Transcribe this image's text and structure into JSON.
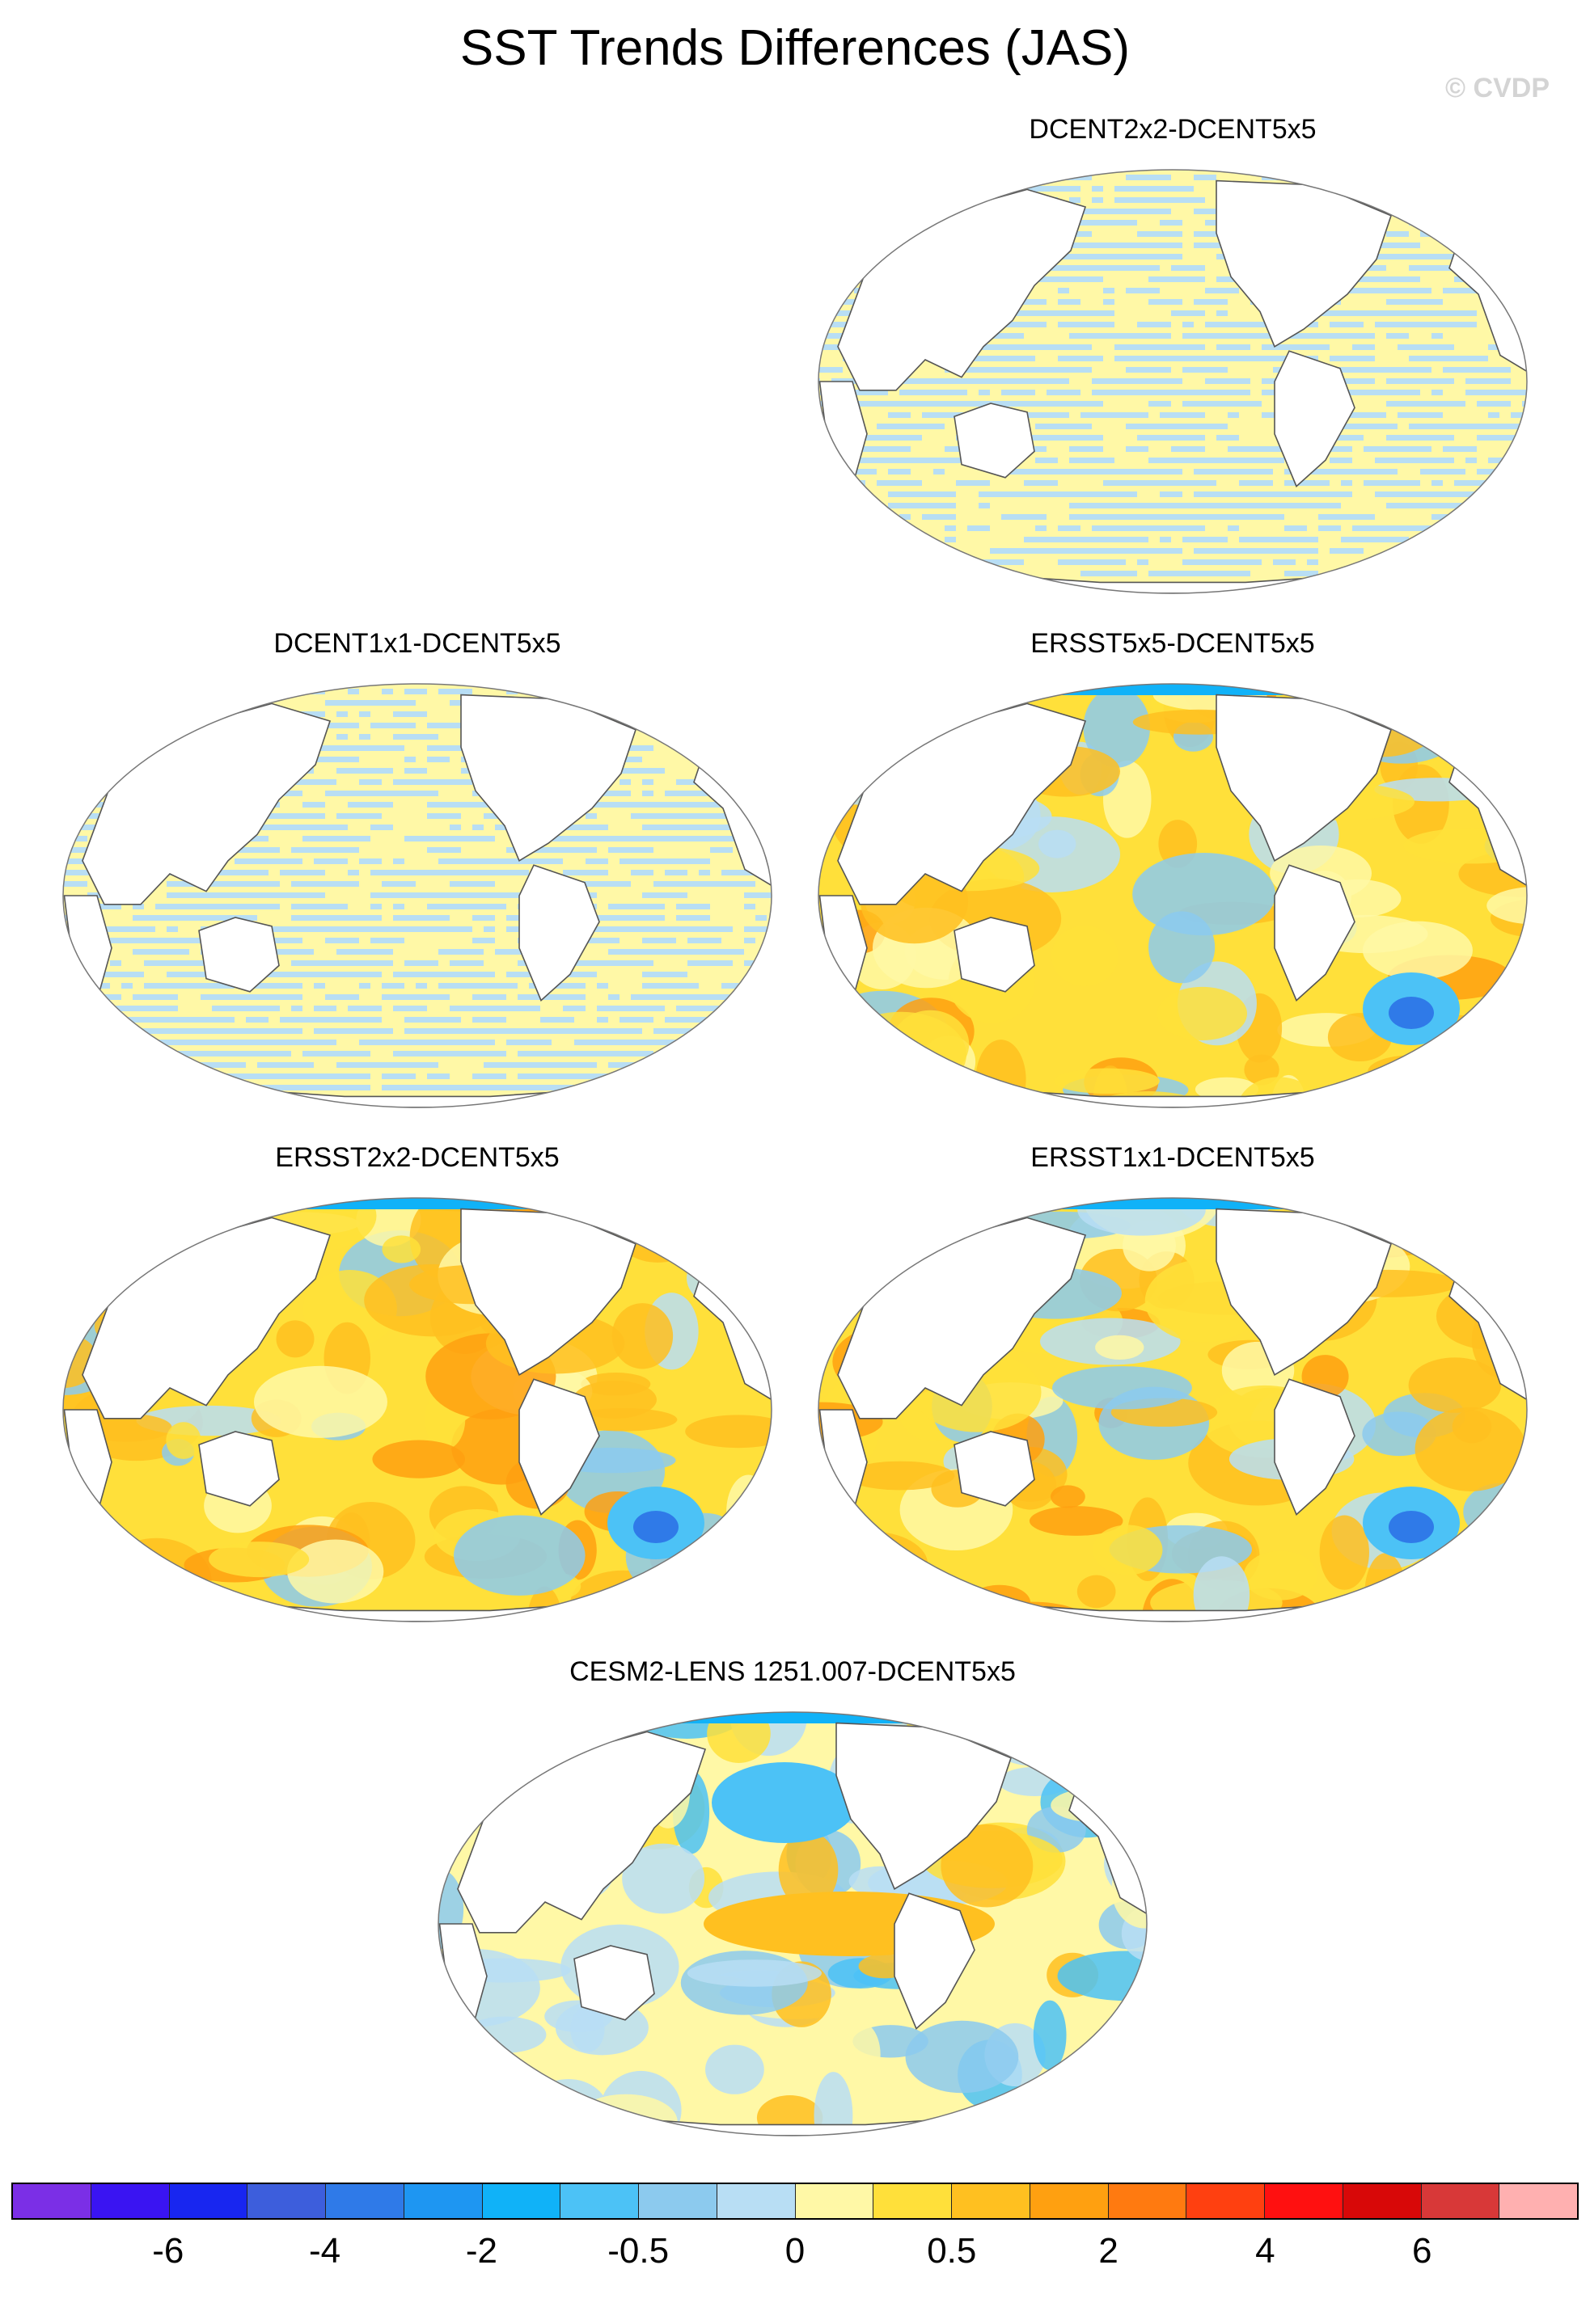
{
  "title": "SST Trends Differences (JAS)",
  "copyright": "© CVDP",
  "panels": [
    {
      "id": "p1",
      "title": "DCENT2x2-DCENT5x5",
      "pattern": "stripes"
    },
    {
      "id": "p2",
      "title": "DCENT1x1-DCENT5x5",
      "pattern": "stripes"
    },
    {
      "id": "p3",
      "title": "ERSST5x5-DCENT5x5",
      "pattern": "warm"
    },
    {
      "id": "p4",
      "title": "ERSST2x2-DCENT5x5",
      "pattern": "warm"
    },
    {
      "id": "p5",
      "title": "ERSST1x1-DCENT5x5",
      "pattern": "warm"
    },
    {
      "id": "p6",
      "title": "CESM2-LENS 1251.007-DCENT5x5",
      "pattern": "mixed"
    }
  ],
  "colorbar": {
    "colors": [
      "#7b2fe6",
      "#3a14f2",
      "#1826f0",
      "#3d5edc",
      "#2f7ae8",
      "#1e96f2",
      "#10b2f8",
      "#4cc2f6",
      "#8ccaee",
      "#b8def4",
      "#fff8a6",
      "#ffe03a",
      "#ffc020",
      "#ffa010",
      "#ff7a10",
      "#ff4010",
      "#ff1010",
      "#d80808",
      "#d83838",
      "#ffb0b0"
    ],
    "tick_labels": [
      "-6",
      "-4",
      "-2",
      "-0.5",
      "0",
      "0.5",
      "2",
      "4",
      "6"
    ]
  }
}
